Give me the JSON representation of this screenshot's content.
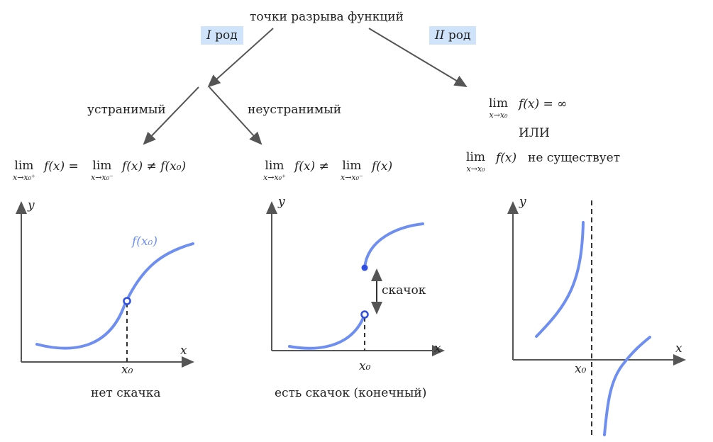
{
  "title": "точки разрыва функций",
  "badge_first": {
    "roman": "I",
    "word": "род"
  },
  "badge_second": {
    "roman": "II",
    "word": "род"
  },
  "branch_removable": "устранимый",
  "branch_nonremovable": "неустранимый",
  "formula_removable": {
    "lim1": "lim",
    "sub1": "x→x₀⁺",
    "f1": "f(x) =",
    "lim2": "lim",
    "sub2": "x→x₀⁻",
    "f2": "f(x) ≠ f(x₀)"
  },
  "formula_jump": {
    "lim1": "lim",
    "sub1": "x→x₀⁺",
    "f1": "f(x) ≠",
    "lim2": "lim",
    "sub2": "x→x₀⁻",
    "f2": "f(x)"
  },
  "formula_second": {
    "lim1": "lim",
    "sub1": "x→x₀",
    "f1": "f(x) = ∞",
    "or": "ИЛИ",
    "lim2": "lim",
    "sub2": "x→x₀",
    "f2": "f(x)",
    "tail": "не существует"
  },
  "axis_labels": {
    "x": "x",
    "y": "y",
    "x0": "x₀"
  },
  "graph1": {
    "curve_label": "f(x₀)",
    "caption": "нет скачка"
  },
  "graph2": {
    "jump_label": "скачок",
    "caption": "есть скачок (конечный)"
  },
  "colors": {
    "curve": "#6f8ff0",
    "point": "#2f4fe0",
    "badge": "#cfe3fb",
    "axis": "#555555"
  }
}
